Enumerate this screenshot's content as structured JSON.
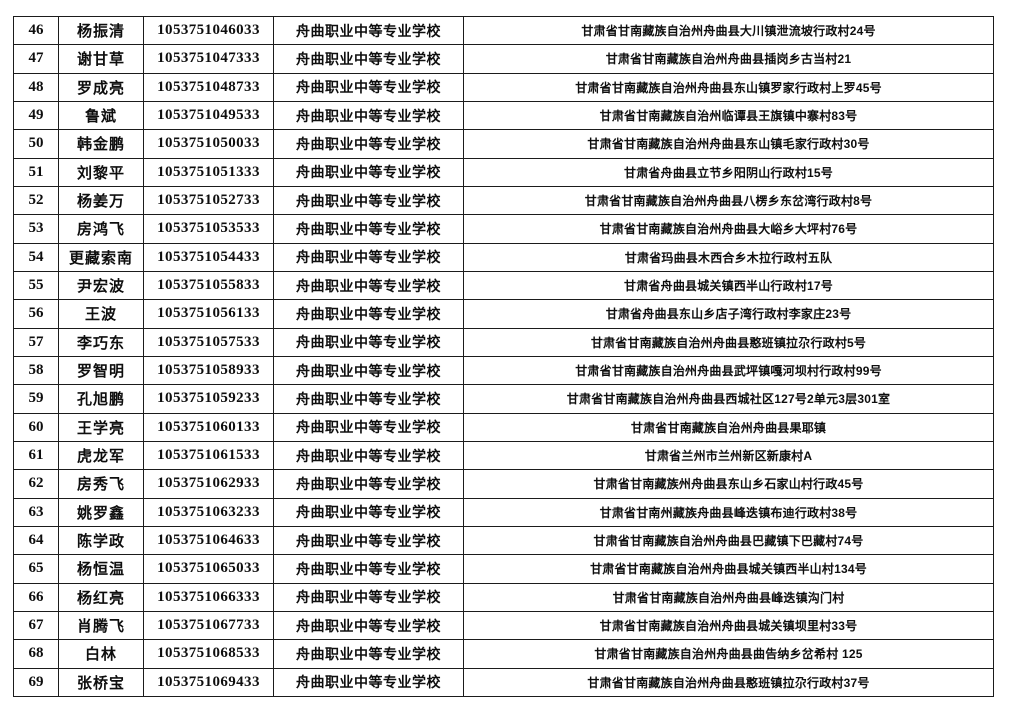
{
  "page": {
    "background_color": "#ffffff",
    "border_color": "#1b1b1b",
    "text_color": "#0e0e0e"
  },
  "table": {
    "columns": [
      {
        "key": "index",
        "name": "row-number-cell"
      },
      {
        "key": "name",
        "name": "student-name-cell"
      },
      {
        "key": "id",
        "name": "candidate-id-cell"
      },
      {
        "key": "school",
        "name": "school-name-cell"
      },
      {
        "key": "address",
        "name": "address-cell"
      }
    ],
    "rows": [
      {
        "index": "46",
        "name": "杨振清",
        "id": "1053751046033",
        "school": "舟曲职业中等专业学校",
        "address": "甘肃省甘南藏族自治州舟曲县大川镇泄流坡行政村24号"
      },
      {
        "index": "47",
        "name": "谢甘草",
        "id": "1053751047333",
        "school": "舟曲职业中等专业学校",
        "address": "甘肃省甘南藏族自治州舟曲县插岗乡古当村21"
      },
      {
        "index": "48",
        "name": "罗成亮",
        "id": "1053751048733",
        "school": "舟曲职业中等专业学校",
        "address": "甘肃省甘南藏族自治州舟曲县东山镇罗家行政村上罗45号"
      },
      {
        "index": "49",
        "name": "鲁斌",
        "id": "1053751049533",
        "school": "舟曲职业中等专业学校",
        "address": "甘肃省甘南藏族自治州临谭县王旗镇中寨村83号"
      },
      {
        "index": "50",
        "name": "韩金鹏",
        "id": "1053751050033",
        "school": "舟曲职业中等专业学校",
        "address": "甘肃省甘南藏族自治州舟曲县东山镇毛家行政村30号"
      },
      {
        "index": "51",
        "name": "刘黎平",
        "id": "1053751051333",
        "school": "舟曲职业中等专业学校",
        "address": "甘肃省舟曲县立节乡阳阴山行政村15号"
      },
      {
        "index": "52",
        "name": "杨姜万",
        "id": "1053751052733",
        "school": "舟曲职业中等专业学校",
        "address": "甘肃省甘南藏族自治州舟曲县八楞乡东岔湾行政村8号"
      },
      {
        "index": "53",
        "name": "房鸿飞",
        "id": "1053751053533",
        "school": "舟曲职业中等专业学校",
        "address": "甘肃省甘南藏族自治州舟曲县大峪乡大坪村76号"
      },
      {
        "index": "54",
        "name": "更藏索南",
        "id": "1053751054433",
        "school": "舟曲职业中等专业学校",
        "address": "甘肃省玛曲县木西合乡木拉行政村五队"
      },
      {
        "index": "55",
        "name": "尹宏波",
        "id": "1053751055833",
        "school": "舟曲职业中等专业学校",
        "address": "甘肃省舟曲县城关镇西半山行政村17号"
      },
      {
        "index": "56",
        "name": "王波",
        "id": "1053751056133",
        "school": "舟曲职业中等专业学校",
        "address": "甘肃省舟曲县东山乡店子湾行政村李家庄23号"
      },
      {
        "index": "57",
        "name": "李巧东",
        "id": "1053751057533",
        "school": "舟曲职业中等专业学校",
        "address": "甘肃省甘南藏族自治州舟曲县憨班镇拉尕行政村5号"
      },
      {
        "index": "58",
        "name": "罗智明",
        "id": "1053751058933",
        "school": "舟曲职业中等专业学校",
        "address": "甘肃省甘南藏族自治州舟曲县武坪镇嘎河坝村行政村99号"
      },
      {
        "index": "59",
        "name": "孔旭鹏",
        "id": "1053751059233",
        "school": "舟曲职业中等专业学校",
        "address": "甘肃省甘南藏族自治州舟曲县西城社区127号2单元3层301室"
      },
      {
        "index": "60",
        "name": "王学亮",
        "id": "1053751060133",
        "school": "舟曲职业中等专业学校",
        "address": "甘肃省甘南藏族自治州舟曲县果耶镇"
      },
      {
        "index": "61",
        "name": "虎龙军",
        "id": "1053751061533",
        "school": "舟曲职业中等专业学校",
        "address": "甘肃省兰州市兰州新区新康村A"
      },
      {
        "index": "62",
        "name": "房秀飞",
        "id": "1053751062933",
        "school": "舟曲职业中等专业学校",
        "address": "甘肃省甘南藏族州舟曲县东山乡石家山村行政45号"
      },
      {
        "index": "63",
        "name": "姚罗鑫",
        "id": "1053751063233",
        "school": "舟曲职业中等专业学校",
        "address": "甘肃省甘南州藏族舟曲县峰迭镇布迪行政村38号"
      },
      {
        "index": "64",
        "name": "陈学政",
        "id": "1053751064633",
        "school": "舟曲职业中等专业学校",
        "address": "甘肃省甘南藏族自治州舟曲县巴藏镇下巴藏村74号"
      },
      {
        "index": "65",
        "name": "杨恒温",
        "id": "1053751065033",
        "school": "舟曲职业中等专业学校",
        "address": "甘肃省甘南藏族自治州舟曲县城关镇西半山村134号"
      },
      {
        "index": "66",
        "name": "杨红亮",
        "id": "1053751066333",
        "school": "舟曲职业中等专业学校",
        "address": "甘肃省甘南藏族自治州舟曲县峰迭镇沟门村"
      },
      {
        "index": "67",
        "name": "肖腾飞",
        "id": "1053751067733",
        "school": "舟曲职业中等专业学校",
        "address": "甘肃省甘南藏族自治州舟曲县城关镇坝里村33号"
      },
      {
        "index": "68",
        "name": "白林",
        "id": "1053751068533",
        "school": "舟曲职业中等专业学校",
        "address": "甘肃省甘南藏族自治州舟曲县曲告纳乡岔希村 125"
      },
      {
        "index": "69",
        "name": "张桥宝",
        "id": "1053751069433",
        "school": "舟曲职业中等专业学校",
        "address": "甘肃省甘南藏族自治州舟曲县憨班镇拉尕行政村37号"
      }
    ]
  }
}
